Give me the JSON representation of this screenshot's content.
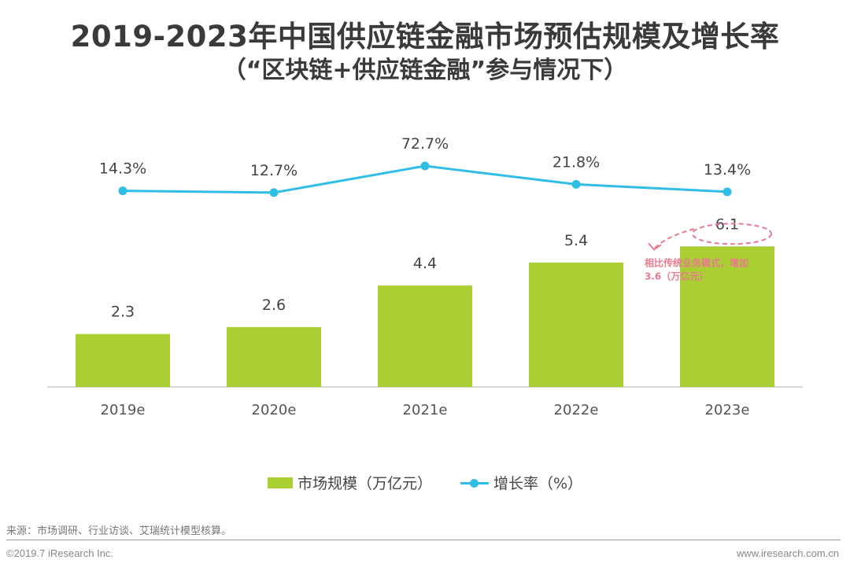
{
  "title": "2019-2023年中国供应链金融市场预估规模及增长率",
  "subtitle": "（“区块链+供应链金融”参与情况下）",
  "colors": {
    "bar": "#a9cf32",
    "line": "#30bde6",
    "annotation": "#e87a8e",
    "text": "#444444"
  },
  "chart_data": {
    "type": "bar",
    "title": "2019-2023年中国供应链金融市场预估规模及增长率",
    "subtitle": "（“区块链+供应链金融”参与情况下）",
    "categories": [
      "2019e",
      "2020e",
      "2021e",
      "2022e",
      "2023e"
    ],
    "series": [
      {
        "name": "市场规模（万亿元）",
        "type": "bar",
        "values": [
          2.3,
          2.6,
          4.4,
          5.4,
          6.1
        ],
        "labels": [
          "2.3",
          "2.6",
          "4.4",
          "5.4",
          "6.1"
        ]
      },
      {
        "name": "增长率（%）",
        "type": "line",
        "values": [
          14.3,
          12.7,
          72.7,
          21.8,
          13.4
        ],
        "labels": [
          "14.3%",
          "12.7%",
          "72.7%",
          "21.8%",
          "13.4%"
        ]
      }
    ],
    "xlabel": "",
    "ylabel": "",
    "grid": false,
    "legend": "bottom-center",
    "annotation": {
      "target": "2023e",
      "text_line1": "相比传统业务模式，增加",
      "text_line2": "3.6（万亿元）"
    }
  },
  "legend": {
    "bar_label": "市场规模（万亿元）",
    "line_label": "增长率（%）"
  },
  "footer": {
    "source": "来源：市场调研、行业访谈、艾瑞统计模型核算。",
    "copyright": "©2019.7 iResearch Inc.",
    "website": "www.iresearch.com.cn"
  }
}
